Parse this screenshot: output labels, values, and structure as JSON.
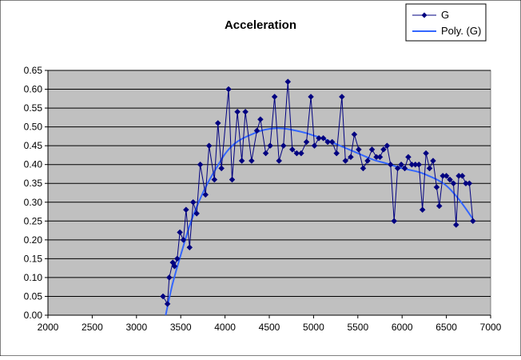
{
  "chart_data": {
    "type": "line",
    "title": "Acceleration",
    "xlabel": "",
    "ylabel": "",
    "xlim": [
      2000,
      7000
    ],
    "ylim": [
      0,
      0.65
    ],
    "x_ticks": [
      2000,
      2500,
      3000,
      3500,
      4000,
      4500,
      5000,
      5500,
      6000,
      6500,
      7000
    ],
    "y_ticks": [
      0.0,
      0.05,
      0.1,
      0.15,
      0.2,
      0.25,
      0.3,
      0.35,
      0.4,
      0.45,
      0.5,
      0.55,
      0.6,
      0.65
    ],
    "y_decimals": 2,
    "grid": "horizontal",
    "legend_position": "top-right",
    "plot_background": "#c0c0c0",
    "series": [
      {
        "name": "G",
        "style": "line-diamond-markers",
        "color": "#000080",
        "points": [
          [
            3300,
            0.05
          ],
          [
            3350,
            0.03
          ],
          [
            3370,
            0.1
          ],
          [
            3410,
            0.14
          ],
          [
            3430,
            0.13
          ],
          [
            3460,
            0.15
          ],
          [
            3490,
            0.22
          ],
          [
            3530,
            0.2
          ],
          [
            3560,
            0.28
          ],
          [
            3600,
            0.18
          ],
          [
            3640,
            0.3
          ],
          [
            3680,
            0.27
          ],
          [
            3720,
            0.4
          ],
          [
            3780,
            0.32
          ],
          [
            3820,
            0.45
          ],
          [
            3880,
            0.36
          ],
          [
            3920,
            0.51
          ],
          [
            3960,
            0.39
          ],
          [
            4040,
            0.6
          ],
          [
            4080,
            0.36
          ],
          [
            4140,
            0.54
          ],
          [
            4190,
            0.41
          ],
          [
            4230,
            0.54
          ],
          [
            4300,
            0.41
          ],
          [
            4360,
            0.49
          ],
          [
            4400,
            0.52
          ],
          [
            4460,
            0.43
          ],
          [
            4510,
            0.45
          ],
          [
            4560,
            0.58
          ],
          [
            4610,
            0.41
          ],
          [
            4660,
            0.45
          ],
          [
            4710,
            0.62
          ],
          [
            4760,
            0.44
          ],
          [
            4810,
            0.43
          ],
          [
            4860,
            0.43
          ],
          [
            4920,
            0.46
          ],
          [
            4970,
            0.58
          ],
          [
            5010,
            0.45
          ],
          [
            5060,
            0.47
          ],
          [
            5110,
            0.47
          ],
          [
            5160,
            0.46
          ],
          [
            5210,
            0.46
          ],
          [
            5260,
            0.43
          ],
          [
            5320,
            0.58
          ],
          [
            5360,
            0.41
          ],
          [
            5420,
            0.42
          ],
          [
            5460,
            0.48
          ],
          [
            5510,
            0.44
          ],
          [
            5560,
            0.39
          ],
          [
            5610,
            0.41
          ],
          [
            5660,
            0.44
          ],
          [
            5710,
            0.42
          ],
          [
            5750,
            0.42
          ],
          [
            5790,
            0.44
          ],
          [
            5830,
            0.45
          ],
          [
            5870,
            0.4
          ],
          [
            5910,
            0.25
          ],
          [
            5950,
            0.39
          ],
          [
            5990,
            0.4
          ],
          [
            6030,
            0.39
          ],
          [
            6070,
            0.42
          ],
          [
            6110,
            0.4
          ],
          [
            6150,
            0.4
          ],
          [
            6190,
            0.4
          ],
          [
            6230,
            0.28
          ],
          [
            6270,
            0.43
          ],
          [
            6310,
            0.39
          ],
          [
            6350,
            0.41
          ],
          [
            6390,
            0.34
          ],
          [
            6420,
            0.29
          ],
          [
            6460,
            0.37
          ],
          [
            6500,
            0.37
          ],
          [
            6540,
            0.36
          ],
          [
            6580,
            0.35
          ],
          [
            6610,
            0.24
          ],
          [
            6640,
            0.37
          ],
          [
            6680,
            0.37
          ],
          [
            6720,
            0.35
          ],
          [
            6760,
            0.35
          ],
          [
            6800,
            0.25
          ]
        ]
      },
      {
        "name": "Poly. (G)",
        "style": "smooth-line",
        "color": "#3366ff",
        "points": [
          [
            3330,
            0.0
          ],
          [
            3400,
            0.08
          ],
          [
            3500,
            0.16
          ],
          [
            3600,
            0.24
          ],
          [
            3700,
            0.3
          ],
          [
            3800,
            0.35
          ],
          [
            3900,
            0.39
          ],
          [
            4000,
            0.43
          ],
          [
            4100,
            0.455
          ],
          [
            4200,
            0.47
          ],
          [
            4300,
            0.48
          ],
          [
            4400,
            0.49
          ],
          [
            4500,
            0.495
          ],
          [
            4600,
            0.497
          ],
          [
            4700,
            0.495
          ],
          [
            4800,
            0.49
          ],
          [
            4900,
            0.485
          ],
          [
            5000,
            0.477
          ],
          [
            5100,
            0.47
          ],
          [
            5200,
            0.46
          ],
          [
            5300,
            0.45
          ],
          [
            5400,
            0.44
          ],
          [
            5500,
            0.43
          ],
          [
            5600,
            0.42
          ],
          [
            5700,
            0.41
          ],
          [
            5800,
            0.405
          ],
          [
            5900,
            0.397
          ],
          [
            6000,
            0.39
          ],
          [
            6100,
            0.385
          ],
          [
            6200,
            0.38
          ],
          [
            6300,
            0.37
          ],
          [
            6400,
            0.36
          ],
          [
            6500,
            0.345
          ],
          [
            6600,
            0.32
          ],
          [
            6700,
            0.29
          ],
          [
            6800,
            0.255
          ]
        ]
      }
    ]
  }
}
